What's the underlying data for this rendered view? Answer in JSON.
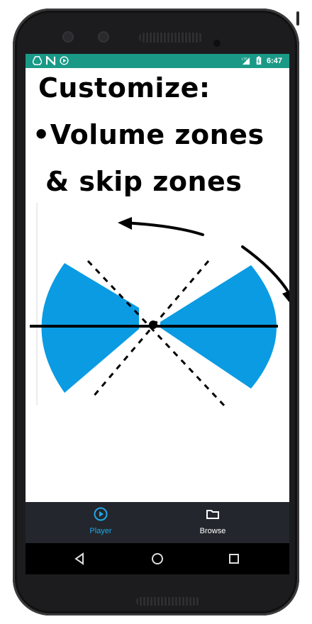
{
  "status_bar": {
    "time": "6:47",
    "left_icons": [
      "drive-icon",
      "n-notification-icon",
      "play-notification-icon"
    ],
    "right_icons": [
      "lte-signal-icon",
      "battery-icon"
    ],
    "color": "#1a9a86"
  },
  "content": {
    "line1": "Customize:",
    "line2": "•Volume zones",
    "line3": "& skip zones"
  },
  "illustration": {
    "zone_color": "#0a9be3"
  },
  "bottom_nav": {
    "items": [
      {
        "label": "Player",
        "icon": "play-circle-icon",
        "active": true,
        "color": "#1fa7e8"
      },
      {
        "label": "Browse",
        "icon": "folder-icon",
        "active": false,
        "color": "#ffffff"
      }
    ]
  },
  "system_nav": {
    "buttons": [
      "back-icon",
      "home-icon",
      "recents-icon"
    ]
  }
}
